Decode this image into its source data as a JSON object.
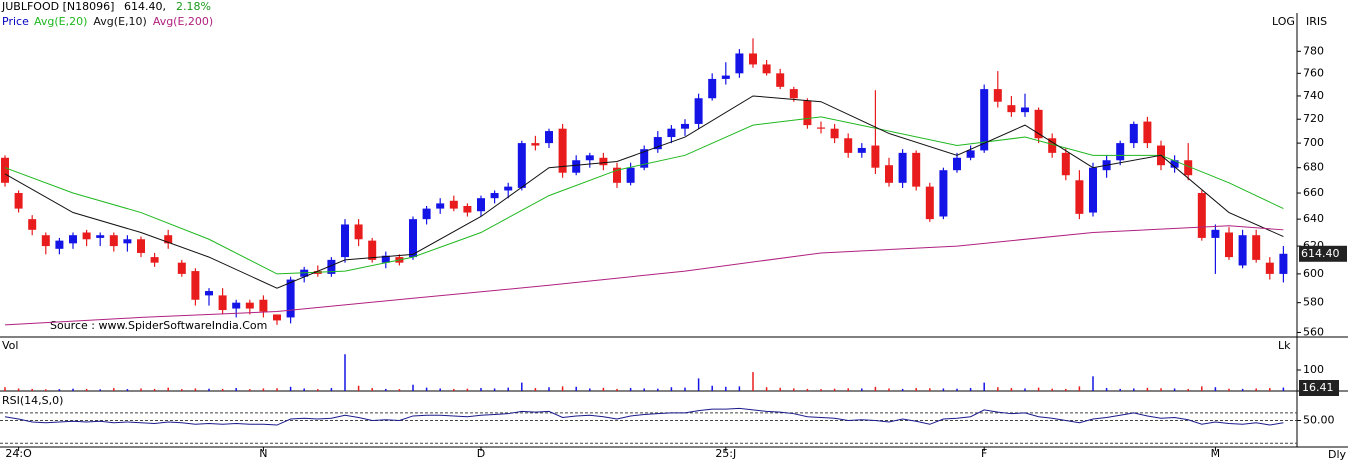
{
  "chart_data": {
    "type": "candlestick",
    "title": "JUBLFOOD [N18096]",
    "last_price_text": "614.40,",
    "change_text": "2.18%",
    "price_name": "Price",
    "price_color": "#0000c0",
    "scale_mode": "LOG",
    "vendor": "IRIS",
    "source": "Source : www.SpiderSoftwareIndia.Com",
    "period": "Dly",
    "log": true,
    "up_color": "#1414e6",
    "down_color": "#e81c1c",
    "categories": [
      null,
      "24:O",
      null,
      null,
      null,
      null,
      null,
      null,
      null,
      null,
      null,
      null,
      null,
      null,
      null,
      null,
      null,
      null,
      null,
      "N",
      null,
      null,
      null,
      null,
      null,
      null,
      null,
      null,
      null,
      null,
      null,
      null,
      null,
      null,
      null,
      "D",
      null,
      null,
      null,
      null,
      null,
      null,
      null,
      null,
      null,
      null,
      null,
      null,
      null,
      null,
      null,
      null,
      null,
      "25:J",
      null,
      null,
      null,
      null,
      null,
      null,
      null,
      null,
      null,
      null,
      null,
      null,
      null,
      null,
      null,
      null,
      null,
      null,
      "F",
      null,
      null,
      null,
      null,
      null,
      null,
      null,
      null,
      null,
      null,
      null,
      null,
      null,
      null,
      null,
      null,
      "M",
      null,
      null,
      null,
      null,
      null
    ],
    "ohlc": [
      [
        688,
        690,
        665,
        668
      ],
      [
        660,
        662,
        645,
        648
      ],
      [
        640,
        643,
        628,
        632
      ],
      [
        628,
        630,
        614,
        620
      ],
      [
        618,
        626,
        614,
        624
      ],
      [
        622,
        630,
        618,
        628
      ],
      [
        630,
        632,
        620,
        625
      ],
      [
        626,
        630,
        620,
        628
      ],
      [
        628,
        630,
        616,
        620
      ],
      [
        622,
        628,
        616,
        625
      ],
      [
        625,
        627,
        612,
        615
      ],
      [
        612,
        615,
        605,
        608
      ],
      [
        628,
        632,
        618,
        622
      ],
      [
        608,
        610,
        598,
        600
      ],
      [
        602,
        604,
        578,
        582
      ],
      [
        585,
        590,
        578,
        588
      ],
      [
        585,
        590,
        572,
        575
      ],
      [
        576,
        582,
        570,
        580
      ],
      [
        580,
        582,
        572,
        576
      ],
      [
        582,
        585,
        570,
        574
      ],
      [
        572,
        572,
        565,
        568
      ],
      [
        570,
        598,
        566,
        596
      ],
      [
        598,
        605,
        594,
        603
      ],
      [
        602,
        606,
        598,
        600
      ],
      [
        600,
        612,
        598,
        610
      ],
      [
        612,
        640,
        608,
        636
      ],
      [
        636,
        640,
        620,
        625
      ],
      [
        624,
        626,
        608,
        610
      ],
      [
        608,
        616,
        604,
        613
      ],
      [
        612,
        614,
        606,
        608
      ],
      [
        612,
        642,
        610,
        640
      ],
      [
        640,
        650,
        636,
        648
      ],
      [
        648,
        656,
        644,
        652
      ],
      [
        654,
        658,
        646,
        648
      ],
      [
        650,
        652,
        642,
        645
      ],
      [
        646,
        658,
        642,
        656
      ],
      [
        656,
        662,
        652,
        660
      ],
      [
        662,
        668,
        656,
        665
      ],
      [
        664,
        702,
        662,
        700
      ],
      [
        700,
        706,
        694,
        698
      ],
      [
        700,
        712,
        696,
        710
      ],
      [
        712,
        716,
        672,
        676
      ],
      [
        676,
        690,
        674,
        686
      ],
      [
        686,
        692,
        680,
        690
      ],
      [
        688,
        692,
        678,
        682
      ],
      [
        680,
        684,
        664,
        668
      ],
      [
        668,
        684,
        666,
        680
      ],
      [
        680,
        698,
        678,
        695
      ],
      [
        695,
        710,
        692,
        705
      ],
      [
        705,
        715,
        700,
        712
      ],
      [
        712,
        720,
        706,
        716
      ],
      [
        716,
        742,
        712,
        738
      ],
      [
        738,
        760,
        736,
        755
      ],
      [
        755,
        770,
        750,
        758
      ],
      [
        760,
        782,
        756,
        778
      ],
      [
        778,
        792,
        765,
        768
      ],
      [
        768,
        772,
        758,
        760
      ],
      [
        760,
        764,
        746,
        748
      ],
      [
        746,
        748,
        735,
        738
      ],
      [
        736,
        738,
        712,
        715
      ],
      [
        713,
        718,
        708,
        712
      ],
      [
        712,
        716,
        700,
        704
      ],
      [
        704,
        708,
        688,
        692
      ],
      [
        692,
        700,
        688,
        696
      ],
      [
        698,
        745,
        675,
        680
      ],
      [
        682,
        688,
        665,
        668
      ],
      [
        668,
        695,
        664,
        692
      ],
      [
        692,
        694,
        662,
        665
      ],
      [
        665,
        668,
        638,
        640
      ],
      [
        642,
        680,
        640,
        678
      ],
      [
        678,
        692,
        676,
        688
      ],
      [
        688,
        698,
        686,
        694
      ],
      [
        694,
        750,
        692,
        746
      ],
      [
        746,
        762,
        730,
        735
      ],
      [
        732,
        740,
        722,
        726
      ],
      [
        726,
        742,
        722,
        730
      ],
      [
        728,
        730,
        700,
        704
      ],
      [
        704,
        708,
        688,
        692
      ],
      [
        692,
        696,
        670,
        674
      ],
      [
        670,
        678,
        640,
        644
      ],
      [
        645,
        684,
        642,
        680
      ],
      [
        678,
        690,
        672,
        686
      ],
      [
        686,
        702,
        682,
        700
      ],
      [
        700,
        718,
        696,
        716
      ],
      [
        718,
        722,
        696,
        700
      ],
      [
        698,
        702,
        678,
        682
      ],
      [
        680,
        690,
        676,
        686
      ],
      [
        686,
        700,
        670,
        674
      ],
      [
        660,
        662,
        624,
        626
      ],
      [
        626,
        636,
        600,
        632
      ],
      [
        630,
        634,
        610,
        612
      ],
      [
        606,
        632,
        604,
        628
      ],
      [
        628,
        632,
        608,
        610
      ],
      [
        608,
        612,
        596,
        600
      ],
      [
        600,
        620,
        594,
        614.4
      ]
    ],
    "price_label": "614.40",
    "ylim": [
      557,
      816
    ],
    "yticks": [
      560,
      580,
      600,
      620,
      640,
      660,
      680,
      700,
      720,
      740,
      760,
      780
    ],
    "series": [
      {
        "name": "Avg(E,20)",
        "color": "#1fb81f",
        "x": [
          0,
          5,
          10,
          15,
          20,
          25,
          30,
          35,
          40,
          45,
          50,
          55,
          60,
          65,
          70,
          75,
          80,
          85,
          90,
          94
        ],
        "values": [
          680,
          660,
          645,
          625,
          600,
          602,
          612,
          630,
          658,
          678,
          690,
          715,
          722,
          710,
          698,
          705,
          690,
          690,
          668,
          648
        ]
      },
      {
        "name": "Avg(E,10)",
        "color": "#111111",
        "x": [
          0,
          5,
          10,
          15,
          20,
          25,
          30,
          35,
          40,
          45,
          50,
          55,
          60,
          65,
          70,
          75,
          80,
          85,
          90,
          94
        ],
        "values": [
          675,
          645,
          630,
          612,
          590,
          610,
          614,
          642,
          680,
          685,
          705,
          740,
          735,
          708,
          690,
          715,
          680,
          690,
          645,
          627
        ]
      },
      {
        "name": "Avg(E,200)",
        "color": "#b0207f",
        "x": [
          0,
          10,
          20,
          30,
          40,
          50,
          60,
          70,
          80,
          90,
          94
        ],
        "values": [
          565,
          570,
          574,
          583,
          592,
          602,
          615,
          620,
          630,
          635,
          632
        ]
      }
    ],
    "volume": {
      "title": "Vol",
      "unit": "Lk",
      "ylim": [
        0,
        238
      ],
      "yticks": [
        100
      ],
      "values": [
        18,
        12,
        10,
        8,
        9,
        11,
        10,
        8,
        14,
        9,
        12,
        10,
        16,
        9,
        12,
        11,
        10,
        14,
        9,
        12,
        13,
        20,
        12,
        9,
        14,
        175,
        25,
        14,
        10,
        9,
        30,
        16,
        12,
        10,
        11,
        14,
        12,
        16,
        40,
        14,
        18,
        22,
        20,
        12,
        15,
        10,
        14,
        12,
        11,
        18,
        16,
        60,
        25,
        20,
        22,
        90,
        18,
        15,
        12,
        10,
        9,
        11,
        13,
        12,
        20,
        12,
        10,
        14,
        13,
        12,
        11,
        14,
        40,
        18,
        14,
        12,
        16,
        11,
        10,
        22,
        70,
        14,
        10,
        12,
        15,
        13,
        12,
        10,
        22,
        18,
        11,
        10,
        12,
        14,
        16.41
      ]
    },
    "rsi": {
      "title": "RSI(14,S,0)",
      "color": "#1a1a8c",
      "ylim": [
        15,
        85
      ],
      "yticks": [
        {
          "value": 50,
          "label": "50.00"
        }
      ],
      "levels": [
        60,
        50,
        20
      ],
      "values": [
        55,
        52,
        48,
        47,
        48,
        49,
        48,
        49,
        47,
        48,
        47,
        46,
        48,
        47,
        45,
        46,
        45,
        46,
        45,
        45,
        44,
        52,
        53,
        52,
        53,
        57,
        54,
        50,
        51,
        50,
        56,
        57,
        57,
        56,
        55,
        57,
        58,
        59,
        62,
        61,
        62,
        54,
        56,
        57,
        55,
        52,
        56,
        58,
        59,
        60,
        60,
        63,
        65,
        65,
        66,
        64,
        62,
        61,
        59,
        55,
        54,
        53,
        50,
        51,
        50,
        48,
        52,
        49,
        45,
        52,
        53,
        55,
        64,
        61,
        59,
        60,
        55,
        53,
        50,
        47,
        52,
        54,
        57,
        60,
        56,
        53,
        54,
        51,
        45,
        48,
        46,
        45,
        47,
        44,
        47
      ]
    }
  }
}
